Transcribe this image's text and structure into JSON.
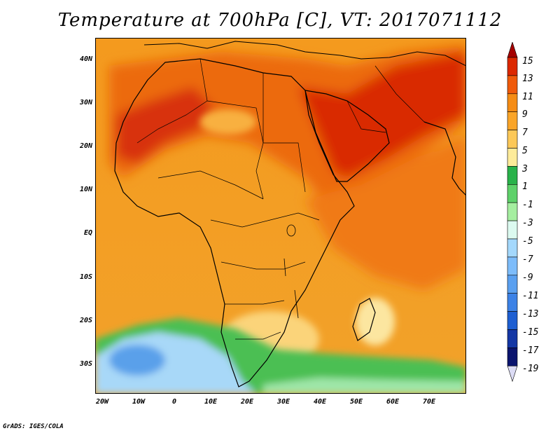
{
  "title": "Temperature at 700hPa [C], VT: 2017071112",
  "credit": "GrADS: IGES/COLA",
  "map": {
    "lat_labels": [
      "40N",
      "30N",
      "20N",
      "10N",
      "EQ",
      "10S",
      "20S",
      "30S"
    ],
    "lon_labels": [
      "20W",
      "10W",
      "0",
      "10E",
      "20E",
      "30E",
      "40E",
      "50E",
      "60E",
      "70E"
    ]
  },
  "colorbar": {
    "labels": [
      "15",
      "13",
      "11",
      "9",
      "7",
      "5",
      "3",
      "1",
      "-1",
      "-3",
      "-5",
      "-7",
      "-9",
      "-11",
      "-13",
      "-15",
      "-17",
      "-19"
    ],
    "colors": [
      "#a50000",
      "#dc2800",
      "#f05a0a",
      "#f58c14",
      "#faa528",
      "#fcc858",
      "#fdeb9a",
      "#29b24a",
      "#5ed16a",
      "#a5eea0",
      "#dcfaf0",
      "#a4d8fc",
      "#7dbcfa",
      "#5aa0f0",
      "#3c82e6",
      "#1e5fd2",
      "#1437a5",
      "#0a146e",
      "#dcdcf5"
    ]
  }
}
